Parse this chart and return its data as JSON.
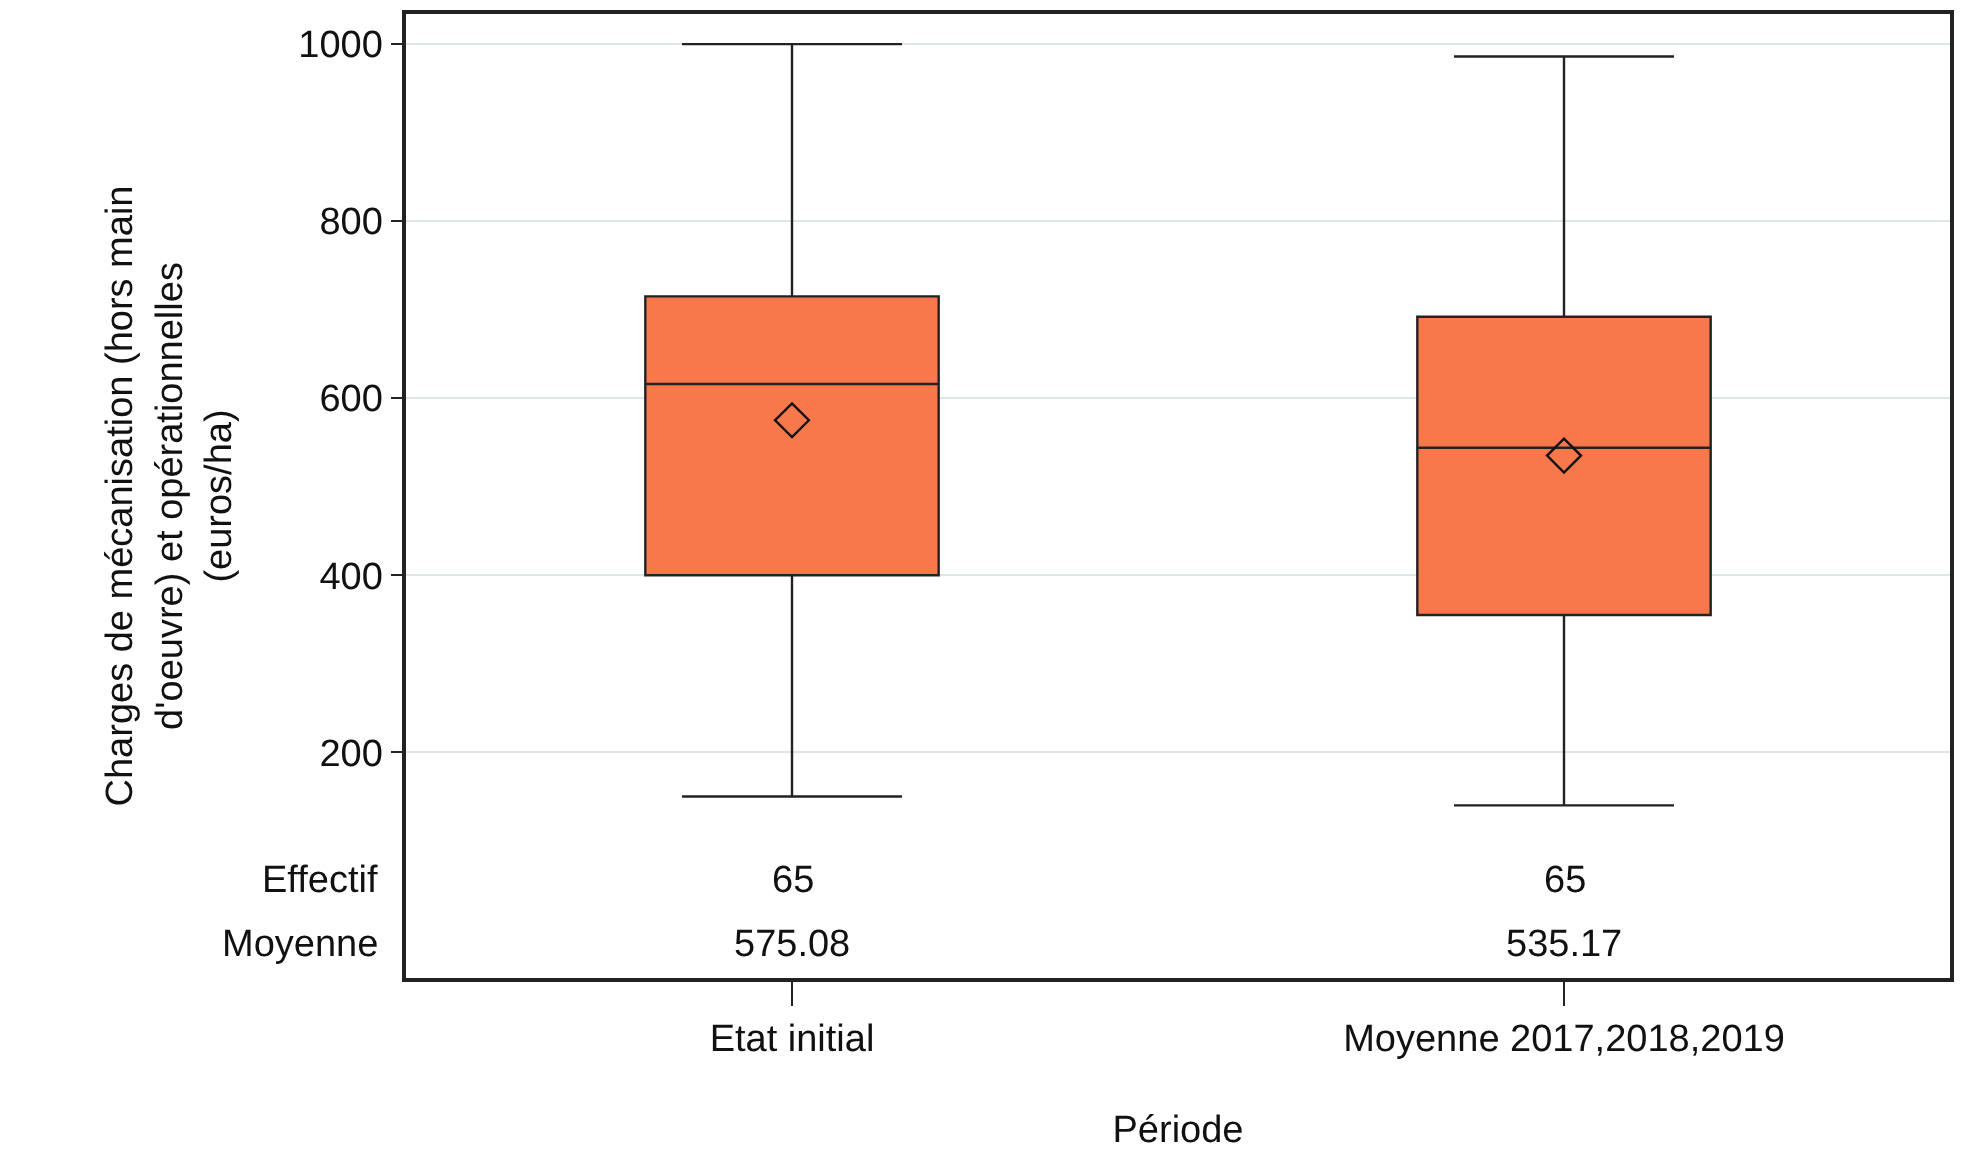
{
  "chart_data": {
    "type": "box",
    "xlabel": "Période",
    "ylabel": "Charges de mécanisation (hors main\nd'oeuvre) et opérationnelles\n(euros/ha)",
    "categories": [
      "Etat initial",
      "Moyenne 2017,2018,2019"
    ],
    "series": [
      {
        "color": "#f8784c",
        "boxes": [
          {
            "low": 150,
            "q1": 400,
            "median": 616,
            "q3": 715,
            "high": 1000,
            "mean": 575.08
          },
          {
            "low": 140,
            "q1": 355,
            "median": 544,
            "q3": 692,
            "high": 986,
            "mean": 535.17
          }
        ]
      }
    ],
    "marker": "diamond",
    "ylim": [
      -55,
      1034
    ],
    "yticks": [
      200,
      400,
      600,
      800,
      1000
    ],
    "grid": "y",
    "legend": false,
    "annotations": [
      "Effectif",
      "Moyenne",
      "65",
      "575.08",
      "65",
      "535.17"
    ]
  }
}
